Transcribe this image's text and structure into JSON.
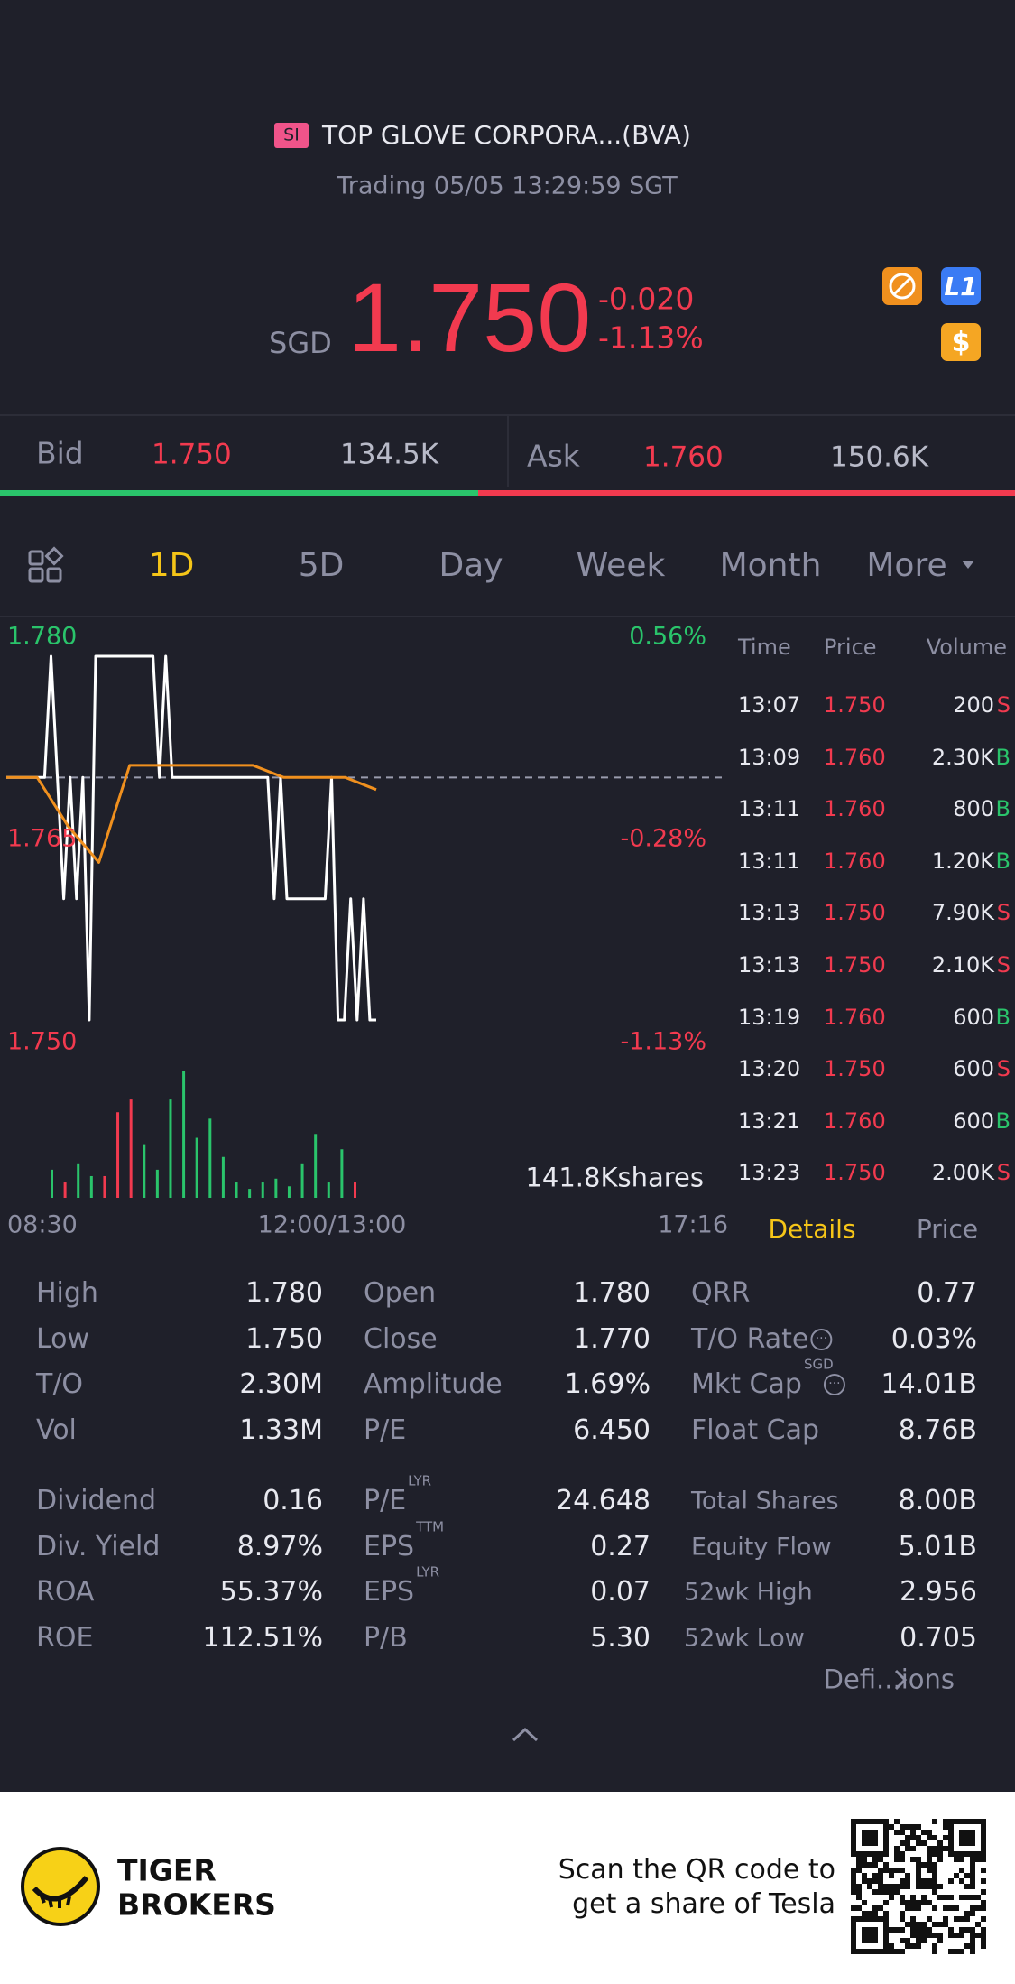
{
  "header": {
    "badge": "SI",
    "title": "TOP GLOVE CORPORA...(BVA)",
    "status": "Trading 05/05 13:29:59 SGT",
    "currency": "SGD",
    "price": "1.750",
    "change": "-0.020",
    "change_pct": "-1.13%"
  },
  "quote": {
    "bid_label": "Bid",
    "bid_price": "1.750",
    "bid_size": "134.5K",
    "ask_label": "Ask",
    "ask_price": "1.760",
    "ask_size": "150.6K"
  },
  "tabs": [
    "1D",
    "5D",
    "Day",
    "Week",
    "Month",
    "More"
  ],
  "chart": {
    "type": "line",
    "ylim": [
      1.75,
      1.78
    ],
    "yticks": [
      {
        "value": 1.78,
        "label": "1.780"
      },
      {
        "value": 1.765,
        "label": "1.765"
      },
      {
        "value": 1.75,
        "label": "1.750"
      }
    ],
    "pct_labels": [
      "0.56%",
      "-0.28%",
      "-1.13%"
    ],
    "ref_line": 1.77,
    "price": {
      "color": "#ffffff",
      "values": [
        1.77,
        1.77,
        1.77,
        1.77,
        1.77,
        1.77,
        1.77,
        1.78,
        1.77,
        1.76,
        1.77,
        1.76,
        1.77,
        1.75,
        1.78,
        1.78,
        1.78,
        1.78,
        1.78,
        1.78,
        1.78,
        1.78,
        1.78,
        1.78,
        1.77,
        1.78,
        1.77,
        1.77,
        1.77,
        1.77,
        1.77,
        1.77,
        1.77,
        1.77,
        1.77,
        1.77,
        1.77,
        1.77,
        1.77,
        1.77,
        1.77,
        1.77,
        1.76,
        1.77,
        1.76,
        1.76,
        1.76,
        1.76,
        1.76,
        1.76,
        1.76,
        1.77,
        1.75,
        1.75,
        1.76,
        1.75,
        1.76,
        1.75,
        1.75
      ]
    },
    "average": {
      "color": "#f0901e",
      "values": [
        1.77,
        1.77,
        1.766,
        1.763,
        1.771,
        1.771,
        1.771,
        1.771,
        1.771,
        1.77,
        1.77,
        1.77,
        1.769
      ]
    },
    "volume": {
      "values": [
        22,
        12,
        27,
        17,
        17,
        67,
        77,
        42,
        22,
        77,
        99,
        47,
        62,
        32,
        12,
        7,
        12,
        15,
        9,
        27,
        50,
        12,
        38,
        12
      ],
      "colors": [
        "#2ac46b",
        "#f23a4f",
        "#2ac46b",
        "#2ac46b",
        "#f23a4f",
        "#f23a4f",
        "#f23a4f",
        "#2ac46b",
        "#2ac46b",
        "#2ac46b",
        "#2ac46b",
        "#2ac46b",
        "#2ac46b",
        "#2ac46b",
        "#2ac46b",
        "#2ac46b",
        "#2ac46b",
        "#2ac46b",
        "#2ac46b",
        "#2ac46b",
        "#2ac46b",
        "#2ac46b",
        "#2ac46b",
        "#f23a4f"
      ]
    },
    "volume_label": "141.8Kshares",
    "time_labels": [
      "08:30",
      "12:00/13:00",
      "17:16"
    ]
  },
  "trades": {
    "columns": [
      "Time",
      "Price",
      "Volume"
    ],
    "rows": [
      {
        "time": "13:07",
        "price": "1.750",
        "volume": "200",
        "side": "S"
      },
      {
        "time": "13:09",
        "price": "1.760",
        "volume": "2.30K",
        "side": "B"
      },
      {
        "time": "13:11",
        "price": "1.760",
        "volume": "800",
        "side": "B"
      },
      {
        "time": "13:11",
        "price": "1.760",
        "volume": "1.20K",
        "side": "B"
      },
      {
        "time": "13:13",
        "price": "1.750",
        "volume": "7.90K",
        "side": "S"
      },
      {
        "time": "13:13",
        "price": "1.750",
        "volume": "2.10K",
        "side": "S"
      },
      {
        "time": "13:19",
        "price": "1.760",
        "volume": "600",
        "side": "B"
      },
      {
        "time": "13:20",
        "price": "1.750",
        "volume": "600",
        "side": "S"
      },
      {
        "time": "13:21",
        "price": "1.760",
        "volume": "600",
        "side": "B"
      },
      {
        "time": "13:23",
        "price": "1.750",
        "volume": "2.00K",
        "side": "S"
      }
    ]
  },
  "detail_tabs": [
    "Details",
    "Price"
  ],
  "stats": [
    [
      {
        "label": "High",
        "value": "1.780"
      },
      {
        "label": "Open",
        "value": "1.780"
      },
      {
        "label": "QRR",
        "value": "0.77"
      }
    ],
    [
      {
        "label": "Low",
        "value": "1.750"
      },
      {
        "label": "Close",
        "value": "1.770"
      },
      {
        "label": "T/O Rate",
        "value": "0.03%",
        "info": true
      }
    ],
    [
      {
        "label": "T/O",
        "value": "2.30M"
      },
      {
        "label": "Amplitude",
        "value": "1.69%"
      },
      {
        "label": "Mkt Cap",
        "sup": "SGD",
        "value": "14.01B",
        "info": true
      }
    ],
    [
      {
        "label": "Vol",
        "value": "1.33M"
      },
      {
        "label": "P/E",
        "value": "6.450"
      },
      {
        "label": "Float Cap",
        "value": "8.76B"
      }
    ],
    [
      {
        "label": "Dividend",
        "value": "0.16"
      },
      {
        "label": "P/E",
        "sup": "LYR",
        "value": "24.648"
      },
      {
        "label": "Total Shares",
        "value": "8.00B"
      }
    ],
    [
      {
        "label": "Div. Yield",
        "value": "8.97%"
      },
      {
        "label": "EPS",
        "sup": "TTM",
        "value": "0.27"
      },
      {
        "label": "Equity Flow",
        "value": "5.01B"
      }
    ],
    [
      {
        "label": "ROA",
        "value": "55.37%"
      },
      {
        "label": "EPS",
        "sup": "LYR",
        "value": "0.07"
      },
      {
        "label": "52wk High",
        "value": "2.956"
      }
    ],
    [
      {
        "label": "ROE",
        "value": "112.51%"
      },
      {
        "label": "P/B",
        "value": "5.30"
      },
      {
        "label": "52wk Low",
        "value": "0.705"
      }
    ]
  ],
  "definitions": "Defi...ions",
  "footer": {
    "brand": [
      "TIGER",
      "BROKERS"
    ],
    "promo": [
      "Scan the QR code to",
      "get a share of Tesla"
    ]
  }
}
